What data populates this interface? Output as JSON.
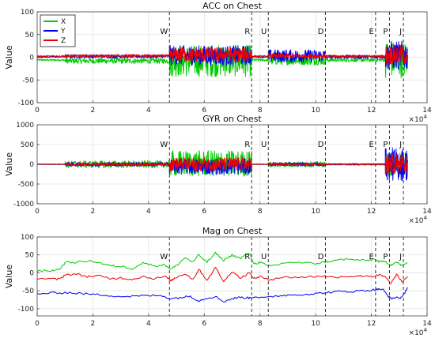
{
  "colors": {
    "X": "#00cc00",
    "Y": "#0000ee",
    "Z": "#ee0000",
    "grid": "#e4e4e4",
    "axis": "#444444",
    "event": "#333333"
  },
  "chart_data": [
    {
      "type": "line",
      "title": "ACC on Chest",
      "ylabel": "Value",
      "xlim": [
        0,
        140000
      ],
      "ylim": [
        -100,
        100
      ],
      "xticks": [
        0,
        2,
        4,
        6,
        8,
        10,
        12,
        14
      ],
      "xtick_multiplier": "×10^4",
      "yticks": [
        -100,
        -50,
        0,
        50,
        100
      ],
      "grid": true,
      "legend": {
        "position": "top-left",
        "entries": [
          "X",
          "Y",
          "Z"
        ]
      },
      "events": [
        {
          "label": "W",
          "x": 47500
        },
        {
          "label": "R",
          "x": 77000
        },
        {
          "label": "U",
          "x": 83000
        },
        {
          "label": "D",
          "x": 103500
        },
        {
          "label": "E",
          "x": 121500
        },
        {
          "label": "P",
          "x": 126500
        },
        {
          "label": "J",
          "x": 131500
        }
      ],
      "series": [
        {
          "name": "X",
          "segments": [
            {
              "x": [
                0,
                10000
              ],
              "center": -6,
              "amp": 2
            },
            {
              "x": [
                10000,
                47500
              ],
              "center": -8,
              "amp": 6
            },
            {
              "x": [
                47500,
                77000
              ],
              "center": -8,
              "amp": 35
            },
            {
              "x": [
                77000,
                83000
              ],
              "center": -6,
              "amp": 3
            },
            {
              "x": [
                83000,
                103500
              ],
              "center": -7,
              "amp": 10
            },
            {
              "x": [
                103500,
                125000
              ],
              "center": -6,
              "amp": 4
            },
            {
              "x": [
                125000,
                133000
              ],
              "center": -5,
              "amp": 40
            }
          ]
        },
        {
          "name": "Y",
          "segments": [
            {
              "x": [
                0,
                10000
              ],
              "center": 1,
              "amp": 2
            },
            {
              "x": [
                10000,
                47500
              ],
              "center": 2,
              "amp": 4
            },
            {
              "x": [
                47500,
                77000
              ],
              "center": 4,
              "amp": 22
            },
            {
              "x": [
                77000,
                83000
              ],
              "center": 1,
              "amp": 2
            },
            {
              "x": [
                83000,
                103500
              ],
              "center": 3,
              "amp": 14
            },
            {
              "x": [
                103500,
                125000
              ],
              "center": 1,
              "amp": 4
            },
            {
              "x": [
                125000,
                133000
              ],
              "center": 4,
              "amp": 32
            }
          ]
        },
        {
          "name": "Z",
          "segments": [
            {
              "x": [
                0,
                10000
              ],
              "center": 2,
              "amp": 2
            },
            {
              "x": [
                10000,
                47500
              ],
              "center": 3,
              "amp": 3
            },
            {
              "x": [
                47500,
                77000
              ],
              "center": 6,
              "amp": 16
            },
            {
              "x": [
                77000,
                83000
              ],
              "center": 2,
              "amp": 2
            },
            {
              "x": [
                83000,
                103500
              ],
              "center": 3,
              "amp": 5
            },
            {
              "x": [
                103500,
                125000
              ],
              "center": 2,
              "amp": 3
            },
            {
              "x": [
                125000,
                133000
              ],
              "center": 5,
              "amp": 22
            }
          ]
        }
      ]
    },
    {
      "type": "line",
      "title": "GYR on Chest",
      "ylabel": "Value",
      "xlim": [
        0,
        140000
      ],
      "ylim": [
        -1000,
        1000
      ],
      "xticks": [
        0,
        2,
        4,
        6,
        8,
        10,
        12,
        14
      ],
      "xtick_multiplier": "×10^4",
      "yticks": [
        -1000,
        -500,
        0,
        500,
        1000
      ],
      "grid": true,
      "events": [
        {
          "label": "W",
          "x": 47500
        },
        {
          "label": "R",
          "x": 77000
        },
        {
          "label": "U",
          "x": 83000
        },
        {
          "label": "D",
          "x": 103500
        },
        {
          "label": "E",
          "x": 121500
        },
        {
          "label": "P",
          "x": 126500
        },
        {
          "label": "J",
          "x": 131500
        }
      ],
      "series": [
        {
          "name": "X",
          "segments": [
            {
              "x": [
                0,
                10000
              ],
              "center": 0,
              "amp": 10
            },
            {
              "x": [
                10000,
                47500
              ],
              "center": 0,
              "amp": 90
            },
            {
              "x": [
                47500,
                77000
              ],
              "center": 20,
              "amp": 330
            },
            {
              "x": [
                77000,
                83000
              ],
              "center": 0,
              "amp": 10
            },
            {
              "x": [
                83000,
                103500
              ],
              "center": 0,
              "amp": 70
            },
            {
              "x": [
                103500,
                125000
              ],
              "center": 0,
              "amp": 20
            },
            {
              "x": [
                125000,
                133000
              ],
              "center": 0,
              "amp": 320
            }
          ]
        },
        {
          "name": "Y",
          "segments": [
            {
              "x": [
                0,
                10000
              ],
              "center": 0,
              "amp": 8
            },
            {
              "x": [
                10000,
                47500
              ],
              "center": 0,
              "amp": 50
            },
            {
              "x": [
                47500,
                77000
              ],
              "center": -60,
              "amp": 200
            },
            {
              "x": [
                77000,
                83000
              ],
              "center": 0,
              "amp": 8
            },
            {
              "x": [
                83000,
                103500
              ],
              "center": 0,
              "amp": 45
            },
            {
              "x": [
                103500,
                125000
              ],
              "center": 0,
              "amp": 20
            },
            {
              "x": [
                125000,
                133000
              ],
              "center": 0,
              "amp": 420
            }
          ]
        },
        {
          "name": "Z",
          "segments": [
            {
              "x": [
                0,
                10000
              ],
              "center": 0,
              "amp": 6
            },
            {
              "x": [
                10000,
                47500
              ],
              "center": 0,
              "amp": 40
            },
            {
              "x": [
                47500,
                77000
              ],
              "center": 0,
              "amp": 170
            },
            {
              "x": [
                77000,
                83000
              ],
              "center": 0,
              "amp": 6
            },
            {
              "x": [
                83000,
                103500
              ],
              "center": 0,
              "amp": 35
            },
            {
              "x": [
                103500,
                125000
              ],
              "center": 0,
              "amp": 15
            },
            {
              "x": [
                125000,
                133000
              ],
              "center": 0,
              "amp": 260
            }
          ]
        }
      ]
    },
    {
      "type": "line",
      "title": "Mag on Chest",
      "ylabel": "Value",
      "xlim": [
        0,
        140000
      ],
      "ylim": [
        -120,
        100
      ],
      "xticks": [
        0,
        2,
        4,
        6,
        8,
        10,
        12,
        14
      ],
      "xtick_multiplier": "×10^4",
      "yticks": [
        -100,
        -50,
        0,
        50,
        100
      ],
      "grid": true,
      "events": [
        {
          "label": "W",
          "x": 47500
        },
        {
          "label": "R",
          "x": 77000
        },
        {
          "label": "U",
          "x": 83000
        },
        {
          "label": "D",
          "x": 103500
        },
        {
          "label": "E",
          "x": 121500
        },
        {
          "label": "P",
          "x": 126500
        },
        {
          "label": "J",
          "x": 131500
        }
      ],
      "series": [
        {
          "name": "X",
          "points": [
            [
              0,
              5
            ],
            [
              5000,
              6
            ],
            [
              8000,
              10
            ],
            [
              10000,
              28
            ],
            [
              14000,
              30
            ],
            [
              20000,
              33
            ],
            [
              24000,
              25
            ],
            [
              26000,
              20
            ],
            [
              30000,
              18
            ],
            [
              34000,
              12
            ],
            [
              38000,
              28
            ],
            [
              42000,
              20
            ],
            [
              46000,
              22
            ],
            [
              48000,
              10
            ],
            [
              50000,
              20
            ],
            [
              53000,
              42
            ],
            [
              56000,
              30
            ],
            [
              58000,
              50
            ],
            [
              61000,
              30
            ],
            [
              64000,
              55
            ],
            [
              67000,
              35
            ],
            [
              70000,
              50
            ],
            [
              73000,
              40
            ],
            [
              76000,
              55
            ],
            [
              78000,
              25
            ],
            [
              80000,
              30
            ],
            [
              83000,
              18
            ],
            [
              86000,
              22
            ],
            [
              90000,
              30
            ],
            [
              95000,
              28
            ],
            [
              100000,
              26
            ],
            [
              103000,
              30
            ],
            [
              105000,
              32
            ],
            [
              110000,
              38
            ],
            [
              115000,
              36
            ],
            [
              118000,
              34
            ],
            [
              121000,
              38
            ],
            [
              123000,
              30
            ],
            [
              125000,
              32
            ],
            [
              127000,
              22
            ],
            [
              129000,
              30
            ],
            [
              131000,
              20
            ],
            [
              133000,
              28
            ]
          ]
        },
        {
          "name": "Y",
          "points": [
            [
              0,
              -58
            ],
            [
              6000,
              -56
            ],
            [
              10000,
              -55
            ],
            [
              15000,
              -57
            ],
            [
              20000,
              -60
            ],
            [
              25000,
              -62
            ],
            [
              30000,
              -66
            ],
            [
              35000,
              -65
            ],
            [
              40000,
              -63
            ],
            [
              45000,
              -64
            ],
            [
              48000,
              -72
            ],
            [
              52000,
              -68
            ],
            [
              55000,
              -65
            ],
            [
              58000,
              -78
            ],
            [
              61000,
              -70
            ],
            [
              64000,
              -66
            ],
            [
              67000,
              -80
            ],
            [
              70000,
              -72
            ],
            [
              73000,
              -68
            ],
            [
              76000,
              -70
            ],
            [
              78000,
              -66
            ],
            [
              82000,
              -70
            ],
            [
              86000,
              -64
            ],
            [
              90000,
              -62
            ],
            [
              95000,
              -60
            ],
            [
              100000,
              -58
            ],
            [
              104000,
              -55
            ],
            [
              108000,
              -52
            ],
            [
              112000,
              -52
            ],
            [
              116000,
              -50
            ],
            [
              120000,
              -48
            ],
            [
              122000,
              -46
            ],
            [
              124000,
              -45
            ],
            [
              125500,
              -60
            ],
            [
              127000,
              -72
            ],
            [
              129000,
              -68
            ],
            [
              131000,
              -70
            ],
            [
              133000,
              -40
            ]
          ]
        },
        {
          "name": "Z",
          "points": [
            [
              0,
              -15
            ],
            [
              5000,
              -17
            ],
            [
              8000,
              -18
            ],
            [
              10000,
              -5
            ],
            [
              14000,
              -4
            ],
            [
              18000,
              -10
            ],
            [
              22000,
              -8
            ],
            [
              26000,
              -16
            ],
            [
              30000,
              -14
            ],
            [
              34000,
              -18
            ],
            [
              38000,
              -10
            ],
            [
              42000,
              -16
            ],
            [
              46000,
              -10
            ],
            [
              48000,
              -22
            ],
            [
              50000,
              -12
            ],
            [
              53000,
              -2
            ],
            [
              56000,
              -18
            ],
            [
              58000,
              10
            ],
            [
              61000,
              -20
            ],
            [
              64000,
              15
            ],
            [
              67000,
              -25
            ],
            [
              70000,
              5
            ],
            [
              73000,
              -15
            ],
            [
              76000,
              0
            ],
            [
              78000,
              -16
            ],
            [
              80000,
              -10
            ],
            [
              83000,
              -20
            ],
            [
              86000,
              -14
            ],
            [
              90000,
              -12
            ],
            [
              95000,
              -12
            ],
            [
              100000,
              -10
            ],
            [
              103000,
              -8
            ],
            [
              105000,
              -12
            ],
            [
              110000,
              -10
            ],
            [
              115000,
              -9
            ],
            [
              118000,
              -8
            ],
            [
              121000,
              -10
            ],
            [
              123000,
              -6
            ],
            [
              125000,
              -12
            ],
            [
              127000,
              -30
            ],
            [
              129000,
              -5
            ],
            [
              131000,
              -25
            ],
            [
              133000,
              -10
            ]
          ]
        }
      ]
    }
  ]
}
